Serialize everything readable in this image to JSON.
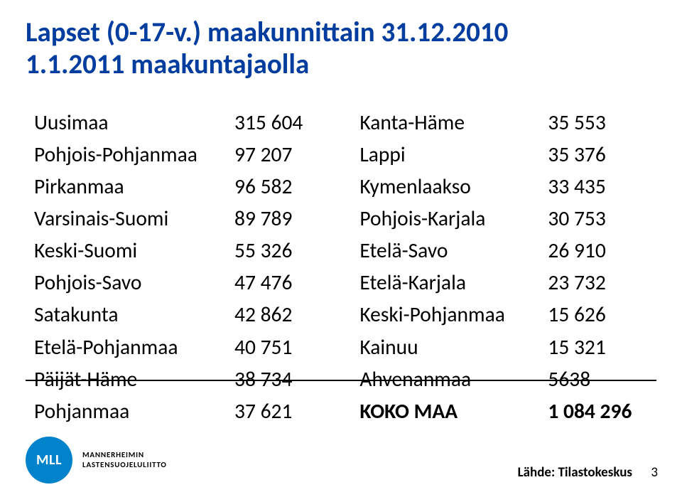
{
  "title_line1": "Lapset (0-17-v.) maakunnittain 31.12.2010",
  "title_line2": "1.1.2011 maakuntajaolla",
  "left": [
    {
      "label": "Uusimaa",
      "value": "315 604"
    },
    {
      "label": "Pohjois-Pohjanmaa",
      "value": "97 207"
    },
    {
      "label": "Pirkanmaa",
      "value": "96 582"
    },
    {
      "label": "Varsinais-Suomi",
      "value": "89 789"
    },
    {
      "label": "Keski-Suomi",
      "value": "55 326"
    },
    {
      "label": "Pohjois-Savo",
      "value": "47 476"
    },
    {
      "label": "Satakunta",
      "value": "42 862"
    },
    {
      "label": "Etelä-Pohjanmaa",
      "value": "40 751"
    },
    {
      "label": "Päijät-Häme",
      "value": "38 734"
    },
    {
      "label": "Pohjanmaa",
      "value": "37 621"
    }
  ],
  "right": [
    {
      "label": "Kanta-Häme",
      "value": "35 553"
    },
    {
      "label": "Lappi",
      "value": "35 376"
    },
    {
      "label": "Kymenlaakso",
      "value": "33 435"
    },
    {
      "label": "Pohjois-Karjala",
      "value": "30 753"
    },
    {
      "label": "Etelä-Savo",
      "value": "26 910"
    },
    {
      "label": "Etelä-Karjala",
      "value": "23 732"
    },
    {
      "label": "Keski-Pohjanmaa",
      "value": "15 626"
    },
    {
      "label": "Kainuu",
      "value": "15 321"
    },
    {
      "label": "Ahvenanmaa",
      "value": "5638"
    }
  ],
  "total": {
    "label": "KOKO MAA",
    "value": "1 084 296"
  },
  "logo_abbr": "MLL",
  "org_line1": "MANNERHEIMIN",
  "org_line2": "LASTENSUOJELULIITTO",
  "source": "Lähde: Tilastokeskus",
  "page_number": "3",
  "colors": {
    "title": "#003d9e",
    "logo_bg": "#0083ca",
    "text": "#000000",
    "background": "#ffffff"
  }
}
